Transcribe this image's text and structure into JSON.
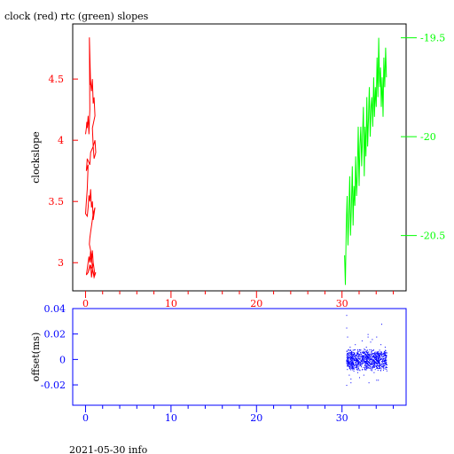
{
  "title": "clock (red) rtc (green) slopes",
  "footer": "2021-05-30 info",
  "colors": {
    "clock": "#ff0000",
    "rtc": "#00ff00",
    "offset": "#0000ff",
    "frame": "#000000",
    "axis_top_x": "#ff0000",
    "axis_bottom": "#0000ff"
  },
  "chart_data": [
    {
      "type": "line",
      "title": "clock (red) rtc (green) slopes",
      "ylabel": "clockslope",
      "xlim": [
        -1.5,
        37.5
      ],
      "ylim_left": [
        2.77,
        4.95
      ],
      "ylim_right": [
        -20.78,
        -19.43
      ],
      "x_ticks": [
        0,
        10,
        20,
        30
      ],
      "x_tick_labels": [
        "0",
        "10",
        "20",
        "30"
      ],
      "y_left_ticks": [
        3,
        3.5,
        4,
        4.5
      ],
      "y_left_tick_labels": [
        "3",
        "3.5",
        "4",
        "4.5"
      ],
      "y_right_ticks": [
        -20.5,
        -20,
        -19.5
      ],
      "y_right_tick_labels": [
        "-20.5",
        "-20",
        "-19.5"
      ],
      "series": [
        {
          "axis": "left",
          "color": "#ff0000",
          "x": [
            0.0,
            0.1,
            0.15,
            0.2,
            0.3,
            0.4,
            0.5,
            0.45,
            0.6,
            0.5,
            0.7,
            0.8,
            0.9,
            1.0,
            1.1,
            0.8,
            0.9,
            1.1,
            1.2,
            1.0,
            0.9,
            0.6,
            0.5,
            0.2,
            0.1,
            0.3,
            0.2,
            0.1,
            0.0,
            0.2,
            0.3,
            0.4,
            0.5,
            0.6,
            0.7,
            0.8,
            0.9,
            1.0,
            1.1,
            0.9,
            0.7,
            0.6,
            0.5,
            0.45,
            0.6,
            0.6,
            0.7,
            0.8,
            0.9,
            1.0,
            1.1,
            0.9,
            0.8,
            0.7,
            0.6,
            0.5,
            0.4,
            0.2,
            0.1,
            0.3,
            0.6,
            0.7,
            0.8,
            1.0,
            1.2,
            1.0,
            0.8,
            0.5,
            0.3
          ],
          "y": [
            4.05,
            4.1,
            4.15,
            4.1,
            4.2,
            4.05,
            4.25,
            4.84,
            4.45,
            4.55,
            4.4,
            4.5,
            4.3,
            4.35,
            4.2,
            4.1,
            3.95,
            4.0,
            3.9,
            3.85,
            3.95,
            3.9,
            3.8,
            3.85,
            3.75,
            3.8,
            3.6,
            3.5,
            3.4,
            3.38,
            3.45,
            3.55,
            3.5,
            3.6,
            3.45,
            3.5,
            3.35,
            3.4,
            3.45,
            3.4,
            3.3,
            3.25,
            3.2,
            3.15,
            3.1,
            3.05,
            3.0,
            3.1,
            3.0,
            2.95,
            2.9,
            3.0,
            2.95,
            3.05,
            3.1,
            3.0,
            3.05,
            2.95,
            2.9,
            2.92,
            2.98,
            2.88,
            2.95,
            2.9,
            2.92,
            2.88,
            2.95,
            2.98,
            2.92
          ]
        },
        {
          "axis": "right",
          "color": "#00ff00",
          "x": [
            30.3,
            30.4,
            30.5,
            30.6,
            30.7,
            30.8,
            30.9,
            31.0,
            31.1,
            31.2,
            31.3,
            31.4,
            31.5,
            31.6,
            31.7,
            31.8,
            31.9,
            32.0,
            32.1,
            32.2,
            32.3,
            32.4,
            32.5,
            32.6,
            32.7,
            32.8,
            32.9,
            33.0,
            33.1,
            33.2,
            33.3,
            33.4,
            33.5,
            33.6,
            33.7,
            33.8,
            33.9,
            34.0,
            34.1,
            34.2,
            34.3,
            34.4,
            34.5,
            34.6,
            34.7,
            34.8,
            34.9,
            35.0,
            35.1,
            35.2
          ],
          "y": [
            -20.6,
            -20.75,
            -20.45,
            -20.3,
            -20.55,
            -20.4,
            -20.2,
            -20.5,
            -20.35,
            -20.15,
            -20.45,
            -20.25,
            -20.35,
            -20.1,
            -20.3,
            -20.2,
            -19.95,
            -20.25,
            -20.05,
            -19.95,
            -20.15,
            -20.0,
            -19.85,
            -20.2,
            -19.95,
            -20.1,
            -19.8,
            -20.05,
            -19.9,
            -19.75,
            -20.0,
            -19.85,
            -19.8,
            -19.95,
            -19.7,
            -19.9,
            -19.75,
            -19.85,
            -19.6,
            -19.8,
            -19.5,
            -19.75,
            -19.65,
            -19.85,
            -19.7,
            -19.9,
            -19.6,
            -19.75,
            -19.55,
            -19.7
          ]
        }
      ]
    },
    {
      "type": "scatter",
      "ylabel": "offset(ms)",
      "xlim": [
        -1.5,
        37.5
      ],
      "ylim": [
        -0.036,
        0.04
      ],
      "x_ticks": [
        0,
        10,
        20,
        30
      ],
      "x_tick_labels": [
        "0",
        "10",
        "20",
        "30"
      ],
      "y_ticks": [
        -0.02,
        0,
        0.02,
        0.04
      ],
      "y_tick_labels": [
        "-0.02",
        "0",
        "0.02",
        "0.04"
      ],
      "series": [
        {
          "color": "#0000ff",
          "x": [
            30.5,
            30.5,
            30.6,
            30.8,
            30.9,
            31.0,
            31.2,
            31.5,
            31.8,
            32.0,
            32.3,
            32.5,
            32.8,
            33.0,
            33.1,
            33.3,
            33.5,
            33.7,
            34.0,
            34.2,
            34.5,
            34.6,
            34.8,
            35.0,
            35.2,
            30.5,
            31.0,
            32.0,
            33.0,
            34.0
          ],
          "y": [
            0.035,
            -0.02,
            0.018,
            -0.012,
            0.01,
            -0.015,
            0.006,
            0.012,
            -0.01,
            0.008,
            0.015,
            -0.012,
            0.01,
            0.02,
            -0.018,
            0.014,
            0.016,
            -0.01,
            0.018,
            -0.016,
            0.012,
            0.028,
            -0.008,
            0.01,
            -0.006,
            0.025,
            -0.018,
            -0.014,
            0.018,
            -0.016
          ]
        }
      ]
    }
  ]
}
